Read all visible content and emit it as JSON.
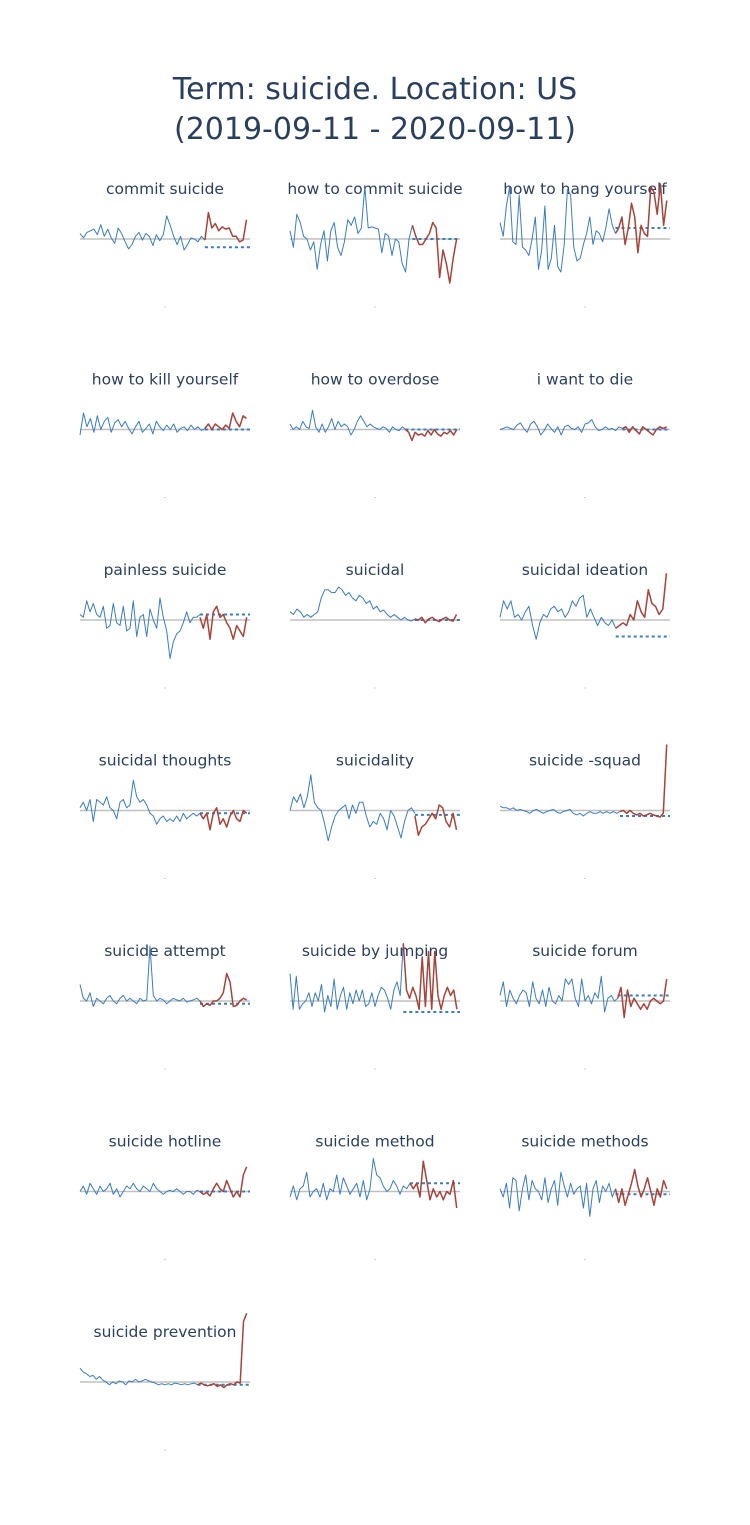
{
  "title": {
    "line1": "Term: suicide. Location: US",
    "line2": "(2019-09-11 - 2020-09-11)"
  },
  "colors": {
    "history": "#3a7dbf",
    "recent": "#a6443a",
    "baseline": "#c0c0c0",
    "forecast": "#3a7dbf",
    "text": "#2a3f5f"
  },
  "chart_data": [
    {
      "type": "line",
      "title": "commit suicide",
      "x_split": 36,
      "history": [
        0.1,
        0.02,
        0.12,
        0.15,
        0.18,
        0.08,
        0.26,
        0.05,
        0.18,
        0.02,
        -0.08,
        0.2,
        0.1,
        -0.05,
        -0.18,
        -0.1,
        0.05,
        0.12,
        -0.02,
        0.1,
        0.05,
        -0.12,
        0.08,
        -0.03,
        0.08,
        0.42,
        0.25,
        0.05,
        -0.1,
        0.05,
        -0.2,
        -0.1,
        0.02,
        0.0,
        -0.05,
        0.05,
        -0.02
      ],
      "recent": [
        -0.02,
        0.48,
        0.2,
        0.28,
        0.15,
        0.22,
        0.18,
        0.2,
        0.05,
        0.05,
        -0.05,
        -0.02,
        0.35
      ],
      "forecast": -0.15
    },
    {
      "type": "line",
      "title": "how to commit suicide",
      "x_split": 36,
      "history": [
        0.15,
        -0.15,
        0.45,
        0.3,
        0.05,
        0.0,
        -0.2,
        -0.05,
        -0.55,
        -0.1,
        0.15,
        -0.4,
        0.15,
        0.3,
        -0.15,
        -0.3,
        -0.05,
        0.35,
        0.25,
        0.4,
        0.1,
        0.2,
        0.95,
        0.2,
        0.22,
        0.2,
        0.18,
        -0.25,
        0.1,
        0.05,
        -0.3,
        0.0,
        -0.05,
        -0.45,
        -0.6,
        0.0,
        0.25
      ],
      "recent": [
        0.25,
        0.05,
        -0.1,
        -0.1,
        0.0,
        0.1,
        0.3,
        0.2,
        -0.7,
        -0.2,
        -0.45,
        -0.8,
        -0.35,
        0.0
      ],
      "forecast": 0.0
    },
    {
      "type": "line",
      "title": "how to hang yourself",
      "x_split": 36,
      "history": [
        0.3,
        0.05,
        0.6,
        0.95,
        -0.05,
        -0.1,
        0.8,
        -0.15,
        -0.2,
        -0.3,
        0.0,
        0.4,
        -0.55,
        -0.2,
        0.6,
        -0.55,
        -0.35,
        0.25,
        -0.5,
        -0.6,
        -0.1,
        0.9,
        0.8,
        -0.15,
        -0.4,
        -0.35,
        -0.1,
        0.1,
        0.4,
        -0.1,
        0.15,
        0.1,
        -0.05,
        0.2,
        0.55,
        0.25,
        0.1
      ],
      "recent": [
        0.1,
        0.2,
        0.4,
        -0.1,
        0.2,
        0.65,
        0.4,
        -0.25,
        0.25,
        0.1,
        0.05,
        0.95,
        0.85,
        0.45,
        1.0,
        0.25,
        0.7
      ],
      "forecast": 0.2
    },
    {
      "type": "line",
      "title": "how to kill yourself",
      "x_split": 36,
      "history": [
        -0.1,
        0.3,
        0.05,
        0.2,
        -0.05,
        0.25,
        0.0,
        0.15,
        0.22,
        -0.05,
        0.12,
        0.18,
        0.05,
        0.15,
        0.02,
        -0.08,
        0.05,
        0.15,
        -0.05,
        0.02,
        0.1,
        -0.08,
        0.15,
        0.05,
        -0.02,
        0.08,
        0.0,
        0.1,
        -0.05,
        0.02,
        0.05,
        -0.02,
        0.08,
        0.0,
        0.05,
        -0.02,
        0.02
      ],
      "recent": [
        0.02,
        0.1,
        0.0,
        0.1,
        0.05,
        0.0,
        0.08,
        0.02,
        0.3,
        0.15,
        0.05,
        0.25,
        0.2
      ],
      "forecast": 0.0
    },
    {
      "type": "line",
      "title": "how to overdose",
      "x_split": 36,
      "history": [
        0.1,
        0.0,
        0.05,
        0.0,
        0.15,
        0.05,
        0.02,
        0.35,
        0.05,
        -0.05,
        0.1,
        -0.05,
        0.05,
        0.2,
        0.0,
        0.15,
        0.05,
        0.1,
        0.05,
        -0.1,
        0.0,
        0.15,
        0.25,
        0.15,
        0.05,
        0.1,
        0.05,
        0.02,
        0.0,
        0.05,
        0.02,
        -0.05,
        0.05,
        0.0,
        -0.02,
        0.05,
        0.0
      ],
      "recent": [
        0.0,
        -0.05,
        -0.2,
        -0.05,
        -0.1,
        -0.08,
        -0.12,
        -0.02,
        -0.1,
        0.0,
        -0.08,
        -0.12,
        -0.05,
        -0.08,
        -0.02,
        -0.1,
        0.0
      ],
      "forecast": 0.0
    },
    {
      "type": "line",
      "title": "i want to die",
      "x_split": 36,
      "history": [
        0.0,
        0.02,
        0.05,
        0.02,
        0.0,
        0.08,
        0.12,
        0.02,
        -0.05,
        0.1,
        0.15,
        0.05,
        -0.1,
        -0.02,
        0.1,
        0.02,
        -0.05,
        0.05,
        -0.1,
        0.05,
        0.08,
        0.02,
        0.0,
        0.05,
        -0.05,
        0.1,
        0.12,
        0.18,
        0.05,
        -0.02,
        0.0,
        0.05,
        0.0,
        0.02,
        -0.02,
        0.05,
        0.02
      ],
      "recent": [
        0.02,
        0.05,
        -0.05,
        0.05,
        -0.02,
        -0.08,
        0.05,
        0.0,
        -0.05,
        -0.1,
        0.0,
        0.05,
        0.02,
        0.05
      ],
      "forecast": 0.0
    },
    {
      "type": "line",
      "title": "painless suicide",
      "x_split": 36,
      "history": [
        0.1,
        0.05,
        0.35,
        0.15,
        0.3,
        0.1,
        0.05,
        0.25,
        -0.15,
        -0.1,
        0.3,
        -0.05,
        -0.1,
        0.25,
        -0.2,
        -0.15,
        0.35,
        -0.3,
        0.05,
        0.1,
        -0.3,
        0.2,
        0.0,
        -0.15,
        0.4,
        0.05,
        -0.2,
        -0.7,
        -0.4,
        -0.25,
        -0.2,
        -0.05,
        0.15,
        -0.05,
        0.05,
        0.05,
        0.1
      ],
      "recent": [
        0.05,
        -0.15,
        0.1,
        -0.35,
        0.15,
        0.25,
        0.05,
        0.1,
        -0.05,
        -0.15,
        -0.35,
        -0.1,
        -0.2,
        -0.3,
        0.05
      ],
      "forecast": 0.1
    },
    {
      "type": "line",
      "title": "suicidal",
      "x_split": 36,
      "history": [
        0.15,
        0.1,
        0.2,
        0.15,
        0.05,
        0.1,
        0.05,
        0.1,
        0.15,
        0.4,
        0.55,
        0.55,
        0.5,
        0.5,
        0.6,
        0.55,
        0.45,
        0.5,
        0.4,
        0.35,
        0.45,
        0.4,
        0.3,
        0.35,
        0.2,
        0.25,
        0.15,
        0.18,
        0.1,
        0.05,
        0.1,
        0.05,
        0.0,
        0.05,
        0.0,
        -0.02,
        0.02
      ],
      "recent": [
        0.02,
        0.0,
        0.05,
        -0.05,
        0.02,
        0.05,
        0.0,
        -0.03,
        0.02,
        0.05,
        0.0,
        -0.02,
        0.1
      ],
      "forecast": 0.0
    },
    {
      "type": "line",
      "title": "suicidal ideation",
      "x_split": 36,
      "history": [
        0.05,
        0.35,
        0.2,
        0.35,
        0.05,
        0.1,
        0.0,
        0.15,
        0.25,
        -0.1,
        -0.35,
        -0.05,
        0.1,
        0.05,
        0.2,
        0.25,
        0.15,
        0.2,
        0.05,
        0.15,
        0.35,
        0.25,
        0.4,
        0.45,
        0.05,
        0.2,
        0.05,
        -0.1,
        0.05,
        -0.05,
        -0.1,
        0.0,
        -0.15
      ],
      "recent": [
        -0.15,
        -0.1,
        -0.05,
        -0.1,
        0.1,
        0.0,
        0.35,
        0.15,
        0.05,
        0.55,
        0.3,
        0.25,
        0.1,
        0.2,
        0.85
      ],
      "forecast": -0.3
    },
    {
      "type": "line",
      "title": "suicidal thoughts",
      "x_split": 36,
      "history": [
        0.05,
        0.15,
        0.0,
        0.2,
        -0.2,
        0.2,
        0.15,
        0.1,
        0.25,
        0.05,
        0.0,
        -0.15,
        0.15,
        0.2,
        0.05,
        0.1,
        0.55,
        0.25,
        0.15,
        0.2,
        0.1,
        -0.05,
        -0.1,
        -0.25,
        -0.15,
        -0.1,
        -0.2,
        -0.15,
        -0.2,
        -0.1,
        -0.2,
        -0.05,
        -0.15,
        -0.1,
        -0.05,
        -0.1,
        -0.05
      ],
      "recent": [
        -0.05,
        -0.15,
        -0.05,
        -0.35,
        -0.05,
        0.05,
        -0.25,
        -0.15,
        -0.3,
        -0.1,
        0.0,
        -0.15,
        -0.2,
        0.0,
        -0.05
      ],
      "forecast": -0.05
    },
    {
      "type": "line",
      "title": "suicidality",
      "x_split": 36,
      "history": [
        0.0,
        0.25,
        0.15,
        0.3,
        0.05,
        0.25,
        0.65,
        0.15,
        0.05,
        0.0,
        -0.25,
        -0.55,
        -0.3,
        -0.1,
        0.0,
        0.05,
        0.1,
        -0.15,
        0.1,
        -0.05,
        0.15,
        0.15,
        -0.1,
        -0.3,
        -0.2,
        -0.25,
        -0.05,
        -0.15,
        -0.35,
        0.0,
        -0.1,
        -0.3,
        -0.5,
        -0.2,
        0.0,
        0.05,
        -0.05
      ],
      "recent": [
        -0.1,
        -0.45,
        -0.3,
        -0.25,
        -0.15,
        -0.05,
        -0.15,
        0.1,
        0.05,
        -0.2,
        -0.3,
        -0.05,
        -0.35
      ],
      "forecast": -0.08
    },
    {
      "type": "line",
      "title": "suicide -squad",
      "x_split": 36,
      "history": [
        0.08,
        0.05,
        0.05,
        0.02,
        0.05,
        0.0,
        0.02,
        0.0,
        -0.02,
        -0.05,
        0.0,
        0.02,
        -0.02,
        -0.05,
        -0.02,
        0.0,
        0.02,
        -0.03,
        -0.05,
        -0.02,
        0.0,
        0.02,
        -0.05,
        -0.08,
        -0.05,
        -0.1,
        -0.05,
        -0.02,
        -0.05,
        -0.05,
        -0.02,
        -0.05,
        -0.02,
        -0.05,
        -0.02,
        -0.05,
        -0.02
      ],
      "recent": [
        -0.02,
        0.0,
        -0.05,
        0.0,
        -0.05,
        -0.08,
        -0.05,
        -0.1,
        -0.08,
        -0.05,
        -0.08,
        -0.1,
        -0.12,
        -0.05,
        1.2
      ],
      "forecast": -0.1
    },
    {
      "type": "line",
      "title": "suicide attempt",
      "x_split": 36,
      "history": [
        0.3,
        0.05,
        0.0,
        0.15,
        -0.1,
        0.05,
        0.0,
        -0.05,
        0.05,
        0.1,
        0.0,
        -0.05,
        0.05,
        0.1,
        0.0,
        0.05,
        0.0,
        -0.05,
        0.05,
        0.0,
        0.02,
        1.0,
        0.1,
        0.0,
        0.05,
        0.02,
        -0.05,
        0.0,
        0.05,
        0.02,
        0.0,
        0.05,
        -0.02,
        0.0,
        0.02,
        0.05,
        0.0
      ],
      "recent": [
        0.0,
        -0.1,
        -0.05,
        -0.08,
        0.0,
        0.0,
        0.05,
        0.15,
        0.5,
        0.35,
        -0.1,
        -0.08,
        0.0,
        0.05,
        0.02
      ],
      "forecast": -0.05
    },
    {
      "type": "line",
      "title": "suicide by jumping",
      "x_split": 36,
      "history": [
        0.5,
        -0.15,
        0.45,
        -0.15,
        -0.05,
        0.0,
        0.15,
        -0.1,
        0.15,
        0.0,
        0.3,
        -0.2,
        0.1,
        -0.1,
        0.4,
        -0.15,
        0.1,
        0.25,
        -0.15,
        0.15,
        -0.05,
        0.2,
        0.0,
        0.2,
        -0.1,
        -0.05,
        0.15,
        -0.1,
        0.1,
        0.25,
        0.2,
        0.05,
        -0.15,
        0.2,
        0.35,
        0.1,
        1.05
      ],
      "recent": [
        1.05,
        0.2,
        0.05,
        0.25,
        0.1,
        -0.15,
        0.8,
        -0.1,
        0.9,
        -0.15,
        0.9,
        0.1,
        -0.15,
        0.1,
        0.25,
        0.1,
        0.2,
        -0.15
      ],
      "forecast": -0.2
    },
    {
      "type": "line",
      "title": "suicide forum",
      "x_split": 36,
      "history": [
        0.1,
        0.35,
        -0.1,
        0.2,
        0.05,
        -0.05,
        0.1,
        0.2,
        0.15,
        -0.1,
        0.35,
        0.05,
        -0.05,
        0.2,
        -0.1,
        0.25,
        0.0,
        -0.05,
        0.1,
        0.0,
        0.4,
        0.3,
        0.4,
        0.05,
        -0.1,
        0.4,
        0.0,
        0.1,
        -0.05,
        0.15,
        0.05,
        0.45,
        -0.2,
        0.05,
        0.1,
        0.0,
        0.05
      ],
      "recent": [
        0.05,
        0.25,
        -0.3,
        0.2,
        -0.1,
        0.05,
        -0.05,
        -0.15,
        -0.05,
        -0.15,
        0.0,
        0.05,
        0.0,
        -0.05,
        0.0,
        0.4
      ],
      "forecast": 0.1
    },
    {
      "type": "line",
      "title": "suicide hotline",
      "x_split": 36,
      "history": [
        0.0,
        0.1,
        -0.05,
        0.15,
        0.05,
        -0.05,
        0.1,
        0.0,
        0.05,
        0.15,
        -0.05,
        0.05,
        -0.1,
        0.0,
        0.1,
        0.05,
        0.15,
        0.05,
        0.0,
        0.1,
        0.05,
        0.0,
        0.15,
        0.05,
        0.0,
        -0.05,
        0.0,
        0.02,
        0.0,
        0.05,
        0.0,
        -0.05,
        0.0,
        0.0,
        -0.05,
        0.02,
        0.0
      ],
      "recent": [
        0.0,
        -0.05,
        -0.02,
        -0.08,
        0.05,
        0.15,
        0.05,
        0.0,
        0.2,
        0.05,
        -0.1,
        0.0,
        -0.1,
        0.3,
        0.45
      ],
      "forecast": 0.0
    },
    {
      "type": "line",
      "title": "suicide method",
      "x_split": 36,
      "history": [
        -0.1,
        0.1,
        -0.15,
        0.05,
        0.1,
        0.35,
        -0.1,
        0.0,
        0.05,
        -0.1,
        0.15,
        -0.15,
        0.05,
        0.0,
        0.3,
        -0.05,
        0.25,
        0.1,
        -0.05,
        0.05,
        0.15,
        -0.1,
        0.2,
        -0.15,
        0.05,
        0.6,
        0.3,
        0.25,
        0.1,
        0.0,
        0.05,
        0.2,
        0.1,
        -0.05,
        0.1,
        0.05,
        0.15
      ],
      "recent": [
        0.15,
        0.05,
        0.15,
        -0.1,
        0.55,
        0.2,
        -0.15,
        0.05,
        -0.1,
        0.0,
        -0.15,
        0.0,
        -0.05,
        0.2,
        -0.3
      ],
      "forecast": 0.15
    },
    {
      "type": "line",
      "title": "suicide methods",
      "x_split": 36,
      "history": [
        0.05,
        -0.1,
        0.15,
        -0.3,
        0.25,
        0.2,
        -0.35,
        0.05,
        0.3,
        -0.15,
        0.2,
        0.05,
        0.0,
        -0.15,
        0.25,
        -0.2,
        0.05,
        0.2,
        -0.25,
        0.35,
        0.1,
        -0.1,
        0.15,
        -0.05,
        0.05,
        0.1,
        -0.3,
        0.15,
        -0.45,
        0.05,
        0.2,
        -0.2,
        0.1,
        0.0,
        0.15,
        -0.1,
        0.05
      ],
      "recent": [
        0.05,
        -0.2,
        0.05,
        -0.25,
        -0.05,
        0.15,
        0.4,
        0.1,
        -0.1,
        0.05,
        0.25,
        0.0,
        -0.25,
        0.05,
        -0.1,
        0.2,
        0.05
      ],
      "forecast": -0.05
    },
    {
      "type": "line",
      "title": "suicide prevention",
      "x_split": 36,
      "history": [
        0.25,
        0.18,
        0.15,
        0.1,
        0.12,
        0.05,
        0.1,
        0.03,
        0.0,
        -0.05,
        0.0,
        -0.03,
        0.02,
        0.0,
        -0.05,
        0.02,
        0.0,
        0.05,
        0.0,
        0.02,
        0.05,
        0.02,
        0.0,
        -0.02,
        -0.05,
        -0.03,
        -0.05,
        -0.03,
        -0.05,
        -0.02,
        -0.03,
        -0.05,
        -0.03,
        -0.05,
        -0.03,
        -0.02,
        -0.05
      ],
      "recent": [
        -0.05,
        -0.02,
        -0.05,
        -0.07,
        -0.05,
        -0.03,
        -0.08,
        -0.05,
        -0.1,
        -0.05,
        -0.03,
        -0.05,
        0.0,
        -0.02,
        1.1,
        1.25
      ],
      "forecast": -0.05
    }
  ]
}
